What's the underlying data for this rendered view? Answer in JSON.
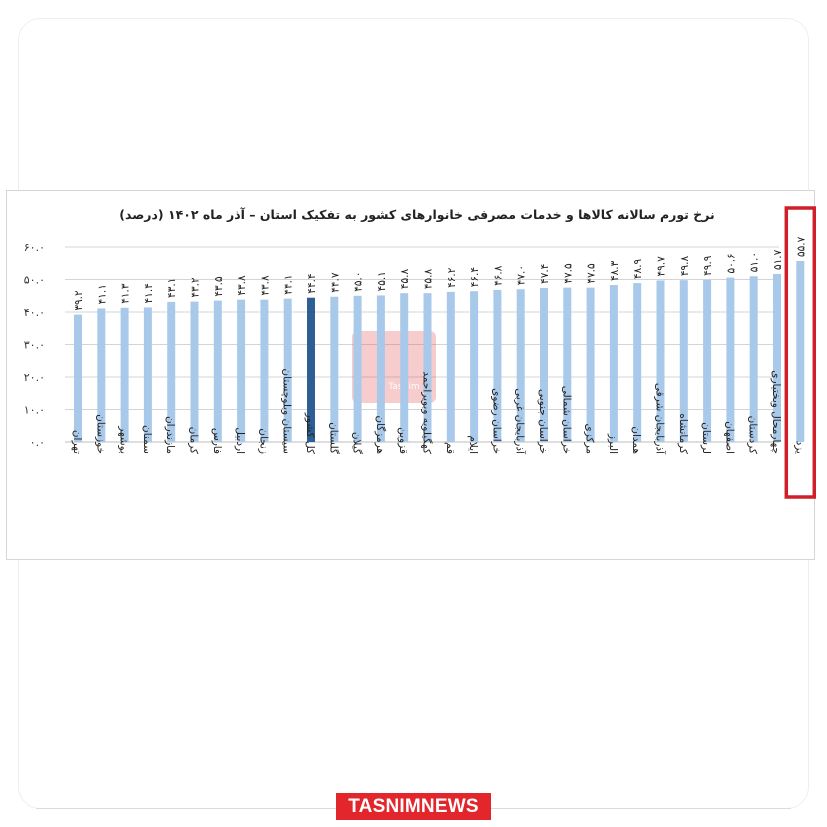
{
  "logo": {
    "text": "TASNIMNEWS"
  },
  "chart_data": {
    "type": "bar",
    "title": "نرخ تورم سالانه کالاها و خدمات مصرفی خانوارهای کشور به تفکیک استان – آذر ماه ۱۴۰۲ (درصد)",
    "ylim": [
      0,
      60
    ],
    "y_ticks": [
      "۰.۰",
      "۱۰.۰",
      "۲۰.۰",
      "۳۰.۰",
      "۴۰.۰",
      "۵۰.۰",
      "۶۰.۰"
    ],
    "categories": [
      "تهران",
      "خوزستان",
      "بوشهر",
      "سمنان",
      "مازندران",
      "کرمان",
      "فارس",
      "اردبیل",
      "زنجان",
      "سیستان وبلوچستان",
      "کل کشور",
      "گلستان",
      "گیلان",
      "هرمزگان",
      "قزوین",
      "کهگیلویه وبویراحمد",
      "قم",
      "ایلام",
      "خراسان رضوی",
      "آذربایجان غربی",
      "خراسان جنوبی",
      "خراسان شمالی",
      "مرکزی",
      "البرز",
      "همدان",
      "آذربایجان شرقی",
      "کرمانشاه",
      "لرستان",
      "اصفهان",
      "کردستان",
      "چهارمحال وبختیاری",
      "یزد"
    ],
    "values": [
      39.2,
      41.1,
      41.3,
      41.4,
      43.1,
      43.2,
      43.5,
      43.8,
      43.8,
      44.1,
      44.4,
      44.7,
      45.0,
      45.1,
      45.8,
      45.8,
      46.2,
      46.4,
      46.8,
      47.0,
      47.4,
      47.5,
      47.5,
      48.3,
      48.9,
      49.7,
      49.8,
      49.9,
      50.6,
      51.0,
      51.7,
      55.7
    ],
    "value_labels": [
      "۳۹.۲",
      "۴۱.۱",
      "۴۱.۳",
      "۴۱.۴",
      "۴۳.۱",
      "۴۳.۲",
      "۴۳.۵",
      "۴۳.۸",
      "۴۳.۸",
      "۴۴.۱",
      "۴۴.۴",
      "۴۴.۷",
      "۴۵.۰",
      "۴۵.۱",
      "۴۵.۸",
      "۴۵.۸",
      "۴۶.۲",
      "۴۶.۴",
      "۴۶.۸",
      "۴۷.۰",
      "۴۷.۴",
      "۴۷.۵",
      "۴۷.۵",
      "۴۸.۳",
      "۴۸.۹",
      "۴۹.۷",
      "۴۹.۸",
      "۴۹.۹",
      "۵۰.۶",
      "۵۱.۰",
      "۵۱.۷",
      "۵۵.۷"
    ],
    "highlight_index": 10,
    "boxed_index": 31,
    "grid": true,
    "colors": {
      "bar": "#a9c9ea",
      "highlight": "#2d5f94",
      "box": "#d11f2a",
      "grid": "#d4d4d4",
      "watermark": "#e0474c"
    },
    "watermark_text": "Tasnim"
  }
}
